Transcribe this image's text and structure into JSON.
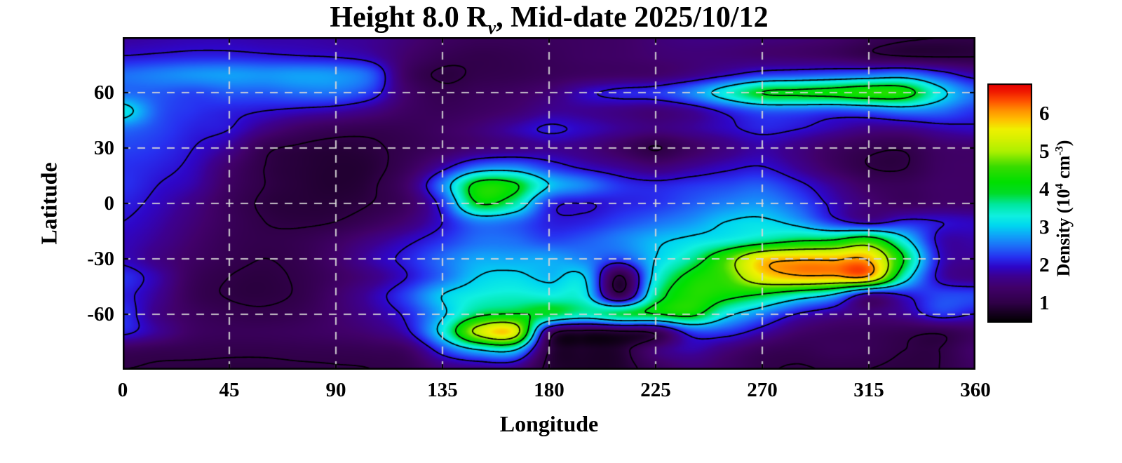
{
  "title": {
    "prefix": "Height 8.0 R",
    "subscript": "v",
    "suffix": ", Mid-date 2025/10/12"
  },
  "axes": {
    "x": {
      "label": "Longitude",
      "ticks": [
        0,
        45,
        90,
        135,
        180,
        225,
        270,
        315,
        360
      ],
      "range": [
        0,
        360
      ]
    },
    "y": {
      "label": "Latitude",
      "ticks": [
        60,
        30,
        0,
        -30,
        -60
      ],
      "range": [
        -90,
        90
      ]
    }
  },
  "colorbar": {
    "label": {
      "prefix": "Density (10",
      "sup1": "4",
      "mid": " cm",
      "sup2": "-3",
      "suffix": ")"
    },
    "ticks": [
      1,
      2,
      3,
      4,
      5,
      6
    ],
    "range": [
      0.48,
      6.8
    ]
  },
  "style_colors": {
    "contour": "#000000",
    "grid": "#d6d6d6",
    "frame": "#000000",
    "background": "#ffffff"
  },
  "grid_lines": {
    "x_step": 45,
    "y_step": 30,
    "dash": [
      11,
      10
    ]
  },
  "chart_data": {
    "type": "heatmap",
    "title": "Height 8.0 Rv, Mid-date 2025/10/12",
    "xlabel": "Longitude",
    "ylabel": "Latitude",
    "units": "10^4 cm^-3",
    "value_range": [
      0.48,
      6.8
    ],
    "contour_levels": [
      1,
      2,
      3,
      4,
      5,
      6
    ],
    "lon": [
      0,
      15,
      30,
      45,
      60,
      75,
      90,
      105,
      120,
      135,
      150,
      165,
      180,
      195,
      210,
      225,
      240,
      255,
      270,
      285,
      300,
      315,
      330,
      345,
      360
    ],
    "lat": [
      90,
      80,
      70,
      60,
      50,
      40,
      30,
      20,
      10,
      0,
      -10,
      -20,
      -30,
      -40,
      -50,
      -60,
      -70,
      -80,
      -90
    ],
    "values": [
      [
        1.75,
        1.8,
        1.85,
        1.85,
        1.8,
        1.8,
        1.75,
        1.7,
        1.5,
        1.3,
        1.2,
        1.2,
        1.25,
        1.3,
        1.35,
        1.5,
        1.6,
        1.6,
        1.55,
        1.5,
        1.4,
        1.2,
        1.05,
        1.0,
        1.0
      ],
      [
        2.0,
        2.05,
        2.1,
        2.1,
        2.05,
        2.0,
        1.95,
        1.8,
        1.4,
        1.15,
        1.05,
        1.1,
        1.2,
        1.3,
        1.35,
        1.45,
        1.5,
        1.5,
        1.45,
        1.4,
        1.3,
        1.1,
        0.98,
        0.95,
        0.97
      ],
      [
        2.5,
        2.6,
        2.7,
        2.75,
        2.7,
        2.75,
        2.7,
        2.4,
        1.3,
        0.95,
        1.05,
        1.1,
        1.2,
        1.3,
        1.35,
        1.4,
        1.6,
        1.9,
        2.2,
        2.3,
        2.4,
        2.5,
        2.6,
        2.2,
        1.8
      ],
      [
        2.5,
        2.4,
        2.3,
        2.4,
        2.4,
        2.5,
        2.5,
        2.2,
        1.4,
        1.1,
        1.2,
        1.3,
        1.5,
        1.9,
        2.1,
        2.2,
        2.6,
        3.3,
        4.0,
        4.1,
        4.2,
        4.4,
        4.3,
        3.2,
        2.5
      ],
      [
        3.2,
        2.4,
        2.2,
        2.1,
        2.0,
        1.9,
        1.8,
        1.6,
        1.3,
        1.2,
        1.3,
        1.45,
        1.7,
        1.7,
        1.6,
        1.5,
        1.7,
        2.1,
        2.4,
        2.4,
        2.3,
        2.4,
        2.6,
        2.5,
        2.2
      ],
      [
        2.5,
        2.3,
        2.1,
        2.0,
        1.6,
        1.3,
        1.15,
        1.1,
        1.15,
        1.3,
        1.5,
        1.8,
        2.05,
        1.9,
        1.7,
        1.55,
        1.7,
        1.9,
        2.1,
        2.0,
        1.8,
        1.6,
        1.6,
        1.8,
        1.9
      ],
      [
        2.3,
        2.2,
        2.0,
        1.7,
        1.1,
        0.95,
        0.9,
        0.95,
        1.1,
        1.3,
        1.5,
        1.6,
        1.7,
        1.6,
        1.3,
        0.98,
        1.3,
        1.6,
        1.8,
        1.6,
        1.3,
        1.1,
        1.05,
        1.35,
        1.4
      ],
      [
        2.2,
        2.1,
        1.9,
        1.4,
        1.0,
        0.9,
        0.85,
        0.9,
        1.2,
        1.8,
        2.5,
        2.6,
        2.2,
        1.9,
        1.7,
        1.5,
        1.7,
        1.9,
        2.0,
        1.7,
        1.3,
        1.0,
        0.98,
        1.3,
        1.35
      ],
      [
        2.2,
        2.0,
        1.8,
        1.3,
        1.0,
        0.9,
        0.85,
        0.95,
        1.4,
        2.6,
        4.2,
        4.1,
        3.0,
        2.6,
        2.2,
        2.1,
        2.2,
        2.3,
        2.4,
        2.1,
        1.7,
        1.3,
        1.2,
        1.35,
        1.35
      ],
      [
        2.1,
        1.9,
        1.6,
        1.2,
        0.95,
        0.9,
        0.9,
        1.0,
        1.3,
        2.2,
        4.0,
        3.6,
        2.2,
        2.0,
        2.1,
        2.2,
        2.4,
        2.6,
        2.7,
        2.4,
        1.9,
        1.5,
        1.3,
        1.4,
        1.4
      ],
      [
        2.0,
        1.8,
        1.5,
        1.2,
        1.0,
        0.95,
        1.0,
        1.2,
        1.5,
        2.0,
        2.6,
        2.5,
        2.1,
        2.1,
        2.3,
        2.5,
        2.7,
        3.0,
        3.1,
        2.8,
        2.2,
        1.8,
        2.1,
        2.0,
        1.9
      ],
      [
        1.9,
        1.7,
        1.4,
        1.15,
        1.05,
        1.1,
        1.3,
        1.6,
        1.9,
        2.2,
        2.5,
        2.5,
        2.3,
        2.4,
        2.6,
        2.9,
        3.1,
        3.3,
        3.6,
        3.9,
        4.0,
        4.4,
        3.2,
        1.9,
        1.8
      ],
      [
        1.9,
        1.6,
        1.3,
        1.1,
        1.0,
        1.1,
        1.4,
        1.8,
        2.1,
        2.5,
        2.8,
        2.8,
        2.8,
        2.6,
        2.3,
        3.0,
        3.6,
        4.6,
        5.7,
        5.9,
        5.9,
        5.9,
        4.0,
        2.0,
        1.7
      ],
      [
        2.2,
        1.8,
        1.2,
        1.0,
        0.95,
        1.05,
        1.3,
        1.6,
        2.0,
        2.5,
        3.0,
        3.1,
        2.9,
        3.0,
        0.95,
        3.2,
        4.2,
        4.6,
        5.55,
        5.9,
        5.9,
        5.9,
        3.4,
        1.9,
        1.6
      ],
      [
        2.1,
        1.7,
        1.15,
        0.98,
        0.95,
        1.05,
        1.4,
        1.8,
        2.3,
        3.0,
        3.3,
        3.4,
        3.3,
        3.2,
        1.2,
        3.6,
        4.4,
        4.2,
        3.9,
        3.4,
        2.9,
        1.7,
        2.0,
        2.3,
        2.3
      ],
      [
        2.2,
        1.6,
        1.25,
        1.1,
        1.05,
        1.15,
        1.4,
        1.7,
        2.1,
        2.9,
        3.8,
        4.0,
        3.9,
        3.5,
        3.8,
        4.0,
        4.2,
        3.2,
        2.6,
        2.0,
        1.7,
        1.5,
        1.7,
        2.2,
        2.0
      ],
      [
        2.1,
        1.7,
        1.3,
        1.2,
        1.2,
        1.25,
        1.35,
        1.5,
        1.9,
        3.2,
        5.2,
        5.5,
        1.4,
        0.85,
        0.9,
        1.1,
        2.2,
        2.2,
        1.8,
        1.4,
        1.25,
        1.2,
        1.1,
        1.05,
        1.3
      ],
      [
        1.2,
        1.12,
        1.08,
        1.05,
        1.05,
        1.08,
        1.1,
        1.15,
        1.3,
        2.2,
        2.9,
        3.0,
        1.0,
        0.8,
        0.85,
        1.5,
        1.8,
        1.5,
        1.2,
        1.1,
        1.2,
        1.15,
        1.0,
        1.0,
        1.4
      ],
      [
        1.0,
        0.97,
        0.95,
        0.94,
        0.94,
        0.96,
        0.98,
        1.0,
        1.1,
        1.5,
        1.6,
        1.6,
        0.9,
        0.78,
        0.82,
        1.2,
        1.45,
        1.3,
        1.05,
        0.98,
        1.02,
        1.0,
        0.95,
        1.0,
        1.3
      ]
    ],
    "colormap": {
      "stops": [
        [
          0.48,
          "#000000"
        ],
        [
          0.75,
          "#190024"
        ],
        [
          1.0,
          "#300048"
        ],
        [
          1.4,
          "#41006a"
        ],
        [
          1.7,
          "#3d0090"
        ],
        [
          1.95,
          "#2e06c8"
        ],
        [
          2.2,
          "#2730f0"
        ],
        [
          2.5,
          "#1e6ef8"
        ],
        [
          2.8,
          "#0fa8f8"
        ],
        [
          3.05,
          "#00d8f0"
        ],
        [
          3.3,
          "#10f0e0"
        ],
        [
          3.6,
          "#00e8a0"
        ],
        [
          3.9,
          "#00dc28"
        ],
        [
          4.2,
          "#00e000"
        ],
        [
          4.6,
          "#38dc00"
        ],
        [
          5.0,
          "#acf000"
        ],
        [
          5.35,
          "#d8f000"
        ],
        [
          5.6,
          "#f0f000"
        ],
        [
          5.85,
          "#ffc000"
        ],
        [
          6.1,
          "#ff9000"
        ],
        [
          6.35,
          "#ff5000"
        ],
        [
          6.6,
          "#f01800"
        ],
        [
          6.8,
          "#e60000"
        ]
      ]
    },
    "legend_position": "right"
  }
}
